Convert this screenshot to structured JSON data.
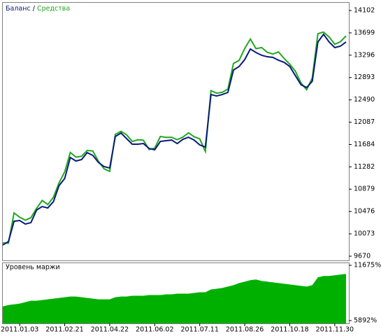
{
  "chart_data": [
    {
      "type": "line",
      "legend_separator": "/",
      "x": [
        0,
        2,
        4,
        6,
        8,
        10,
        12,
        14,
        16,
        18,
        20,
        22,
        24,
        26,
        28,
        30,
        32,
        34,
        36,
        38,
        40,
        42,
        44,
        46,
        48,
        50,
        52,
        54,
        56,
        58,
        60,
        62,
        64,
        66,
        68,
        70,
        72,
        74,
        76,
        78,
        80,
        82,
        84,
        86,
        88,
        90,
        92,
        94,
        96,
        98,
        100,
        102,
        104,
        106,
        108,
        110,
        112,
        114,
        116,
        118,
        120,
        122
      ],
      "xlim": [
        0,
        123
      ],
      "ylim": [
        9594,
        14241
      ],
      "yticks": [
        9670,
        10073,
        10476,
        10879,
        11282,
        11684,
        12087,
        12490,
        12893,
        13296,
        13699,
        14102
      ],
      "series": [
        {
          "name": "Средства",
          "color": "#1fa81f",
          "values": [
            9911,
            9904,
            10450,
            10373,
            10320,
            10365,
            10532,
            10676,
            10600,
            10734,
            10994,
            11191,
            11540,
            11457,
            11472,
            11578,
            11568,
            11381,
            11246,
            11200,
            11869,
            11922,
            11861,
            11740,
            11770,
            11762,
            11594,
            11619,
            11830,
            11813,
            11815,
            11772,
            11818,
            11896,
            11825,
            11787,
            11559,
            12656,
            12611,
            12626,
            12684,
            13148,
            13202,
            13418,
            13587,
            13414,
            13434,
            13348,
            13316,
            13355,
            13237,
            13132,
            13007,
            12793,
            12673,
            12886,
            13684,
            13713,
            13624,
            13493,
            13538,
            13644
          ]
        },
        {
          "name": "Баланс",
          "color": "#0a1a7a",
          "values": [
            9871,
            9934,
            10300,
            10313,
            10250,
            10275,
            10502,
            10566,
            10540,
            10654,
            10944,
            11071,
            11450,
            11387,
            11412,
            11538,
            11488,
            11361,
            11286,
            11260,
            11829,
            11892,
            11791,
            11690,
            11690,
            11702,
            11614,
            11589,
            11740,
            11753,
            11765,
            11702,
            11778,
            11816,
            11765,
            11677,
            11639,
            12586,
            12561,
            12586,
            12624,
            13028,
            13092,
            13218,
            13407,
            13344,
            13294,
            13268,
            13256,
            13205,
            13167,
            13092,
            12927,
            12763,
            12713,
            12826,
            13534,
            13673,
            13534,
            13433,
            13458,
            13534
          ]
        }
      ]
    },
    {
      "type": "area",
      "title": "Уровень маржи",
      "color": "#00b000",
      "x": [
        0,
        2,
        4,
        6,
        8,
        10,
        12,
        14,
        16,
        18,
        20,
        22,
        24,
        26,
        28,
        30,
        32,
        34,
        36,
        38,
        40,
        42,
        44,
        46,
        48,
        50,
        52,
        54,
        56,
        58,
        60,
        62,
        64,
        66,
        68,
        70,
        72,
        74,
        76,
        78,
        80,
        82,
        84,
        86,
        88,
        90,
        92,
        94,
        96,
        98,
        100,
        102,
        104,
        106,
        108,
        110,
        112,
        114,
        116,
        118,
        120,
        122
      ],
      "values": [
        7374,
        7522,
        7596,
        7670,
        7819,
        7967,
        7967,
        8041,
        8115,
        8189,
        8263,
        8337,
        8411,
        8411,
        8337,
        8263,
        8189,
        8115,
        8115,
        8115,
        8337,
        8411,
        8411,
        8486,
        8486,
        8486,
        8560,
        8560,
        8560,
        8634,
        8634,
        8708,
        8708,
        8708,
        8782,
        8856,
        8856,
        9152,
        9227,
        9301,
        9449,
        9597,
        9819,
        9968,
        10116,
        10190,
        10042,
        9968,
        9893,
        9819,
        9745,
        9671,
        9597,
        9523,
        9449,
        9597,
        10412,
        10560,
        10560,
        10634,
        10709,
        10783
      ],
      "xlim": [
        0,
        123
      ],
      "ylim": [
        5596,
        11897
      ],
      "yticks": [
        {
          "value": 11675,
          "label": "11675%"
        },
        {
          "value": 5892,
          "label": "5892%"
        }
      ],
      "xticks": [
        {
          "value": 6,
          "label": "2011.01.03"
        },
        {
          "value": 22,
          "label": "2011.02.21"
        },
        {
          "value": 38,
          "label": "2011.04.22"
        },
        {
          "value": 54,
          "label": "2011.06.02"
        },
        {
          "value": 70,
          "label": "2011.07.11"
        },
        {
          "value": 86,
          "label": "2011.08.26"
        },
        {
          "value": 102,
          "label": "2011.10.18"
        },
        {
          "value": 118,
          "label": "2011.11.30"
        }
      ]
    }
  ]
}
